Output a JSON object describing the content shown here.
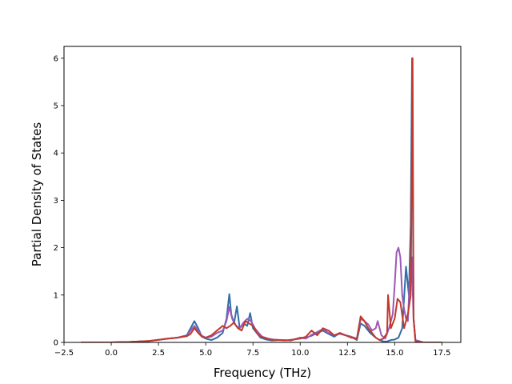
{
  "chart_data": {
    "type": "line",
    "title": "",
    "xlabel": "Frequency (THz)",
    "ylabel": "Partial Density of States",
    "xlim": [
      -2.5,
      18.5
    ],
    "ylim": [
      0,
      6.25
    ],
    "xticks": [
      -2.5,
      0.0,
      2.5,
      5.0,
      7.5,
      10.0,
      12.5,
      15.0,
      17.5
    ],
    "xtick_labels": [
      "−2.5",
      "0.0",
      "2.5",
      "5.0",
      "7.5",
      "10.0",
      "12.5",
      "15.0",
      "17.5"
    ],
    "yticks": [
      0,
      1,
      2,
      3,
      4,
      5,
      6
    ],
    "ytick_labels": [
      "0",
      "1",
      "2",
      "3",
      "4",
      "5",
      "6"
    ],
    "grid": false,
    "legend": "none",
    "series": [
      {
        "color": "#2f6ea8",
        "x": [
          -1.6,
          0,
          1,
          2,
          2.6,
          3,
          3.5,
          4,
          4.2,
          4.4,
          4.6,
          4.8,
          5.0,
          5.3,
          5.6,
          5.9,
          6.1,
          6.25,
          6.35,
          6.5,
          6.65,
          6.8,
          7.0,
          7.2,
          7.35,
          7.5,
          7.7,
          7.9,
          8.2,
          8.5,
          9,
          9.5,
          10,
          10.3,
          10.6,
          10.9,
          11.2,
          11.5,
          11.8,
          12.1,
          12.4,
          12.7,
          13.0,
          13.2,
          13.4,
          13.7,
          14.0,
          14.2,
          14.4,
          14.6,
          14.8,
          15.0,
          15.2,
          15.4,
          15.6,
          15.75,
          15.85,
          15.92,
          16.0,
          16.1,
          16.5,
          17.5
        ],
        "y": [
          0,
          0,
          0.01,
          0.03,
          0.06,
          0.08,
          0.1,
          0.15,
          0.3,
          0.45,
          0.3,
          0.12,
          0.08,
          0.05,
          0.1,
          0.2,
          0.5,
          1.02,
          0.6,
          0.4,
          0.76,
          0.3,
          0.4,
          0.35,
          0.62,
          0.3,
          0.2,
          0.1,
          0.06,
          0.04,
          0.05,
          0.04,
          0.1,
          0.1,
          0.14,
          0.2,
          0.25,
          0.18,
          0.12,
          0.2,
          0.15,
          0.12,
          0.05,
          0.4,
          0.35,
          0.2,
          0.1,
          0.05,
          0.02,
          0.02,
          0.05,
          0.06,
          0.1,
          0.3,
          1.6,
          1.0,
          2.5,
          6.0,
          0.5,
          0.05,
          0,
          0
        ]
      },
      {
        "color": "#9b59b6",
        "x": [
          -1.6,
          0,
          1,
          2,
          2.6,
          3,
          3.5,
          4,
          4.2,
          4.4,
          4.6,
          4.8,
          5.0,
          5.3,
          5.6,
          5.9,
          6.1,
          6.25,
          6.4,
          6.6,
          6.8,
          7.0,
          7.2,
          7.4,
          7.6,
          7.8,
          8.0,
          8.3,
          8.6,
          9,
          9.5,
          10,
          10.3,
          10.6,
          10.9,
          11.2,
          11.5,
          11.8,
          12.1,
          12.4,
          12.7,
          13.0,
          13.2,
          13.4,
          13.6,
          13.8,
          14.0,
          14.1,
          14.3,
          14.5,
          14.7,
          14.9,
          15.0,
          15.1,
          15.2,
          15.3,
          15.4,
          15.5,
          15.6,
          15.7,
          15.8,
          15.9,
          16.0,
          16.1,
          16.5,
          17.5
        ],
        "y": [
          0,
          0,
          0.01,
          0.03,
          0.06,
          0.08,
          0.1,
          0.14,
          0.25,
          0.35,
          0.25,
          0.14,
          0.1,
          0.12,
          0.2,
          0.25,
          0.45,
          0.75,
          0.5,
          0.35,
          0.3,
          0.42,
          0.5,
          0.45,
          0.3,
          0.2,
          0.12,
          0.08,
          0.06,
          0.05,
          0.04,
          0.1,
          0.08,
          0.16,
          0.22,
          0.28,
          0.2,
          0.15,
          0.18,
          0.15,
          0.12,
          0.08,
          0.5,
          0.45,
          0.38,
          0.25,
          0.3,
          0.45,
          0.15,
          0.08,
          0.3,
          0.6,
          1.2,
          1.9,
          2.0,
          1.8,
          1.0,
          0.7,
          0.5,
          0.45,
          1.4,
          1.8,
          0.5,
          0.05,
          0,
          0
        ]
      },
      {
        "color": "#c0392b",
        "x": [
          -1.6,
          0,
          1,
          2,
          2.6,
          3,
          3.5,
          4,
          4.2,
          4.4,
          4.6,
          4.8,
          5.0,
          5.3,
          5.6,
          5.9,
          6.1,
          6.3,
          6.5,
          6.7,
          6.9,
          7.1,
          7.3,
          7.5,
          7.7,
          7.9,
          8.1,
          8.4,
          8.8,
          9.2,
          9.6,
          10,
          10.3,
          10.6,
          10.9,
          11.2,
          11.5,
          11.8,
          12.1,
          12.4,
          12.7,
          13.0,
          13.2,
          13.4,
          13.6,
          13.8,
          14.0,
          14.2,
          14.4,
          14.6,
          14.65,
          14.8,
          15.0,
          15.15,
          15.3,
          15.5,
          15.7,
          15.85,
          15.95,
          16.0,
          16.1,
          16.5,
          17.5
        ],
        "y": [
          0,
          0,
          0.01,
          0.03,
          0.06,
          0.08,
          0.1,
          0.13,
          0.18,
          0.3,
          0.2,
          0.12,
          0.1,
          0.15,
          0.25,
          0.35,
          0.3,
          0.35,
          0.42,
          0.3,
          0.25,
          0.45,
          0.4,
          0.35,
          0.2,
          0.12,
          0.1,
          0.06,
          0.05,
          0.04,
          0.06,
          0.08,
          0.12,
          0.25,
          0.15,
          0.3,
          0.25,
          0.15,
          0.2,
          0.15,
          0.1,
          0.08,
          0.55,
          0.45,
          0.3,
          0.2,
          0.1,
          0.05,
          0.08,
          0.2,
          1.0,
          0.3,
          0.5,
          0.92,
          0.85,
          0.3,
          0.6,
          1.0,
          6.0,
          0.5,
          0.02,
          0,
          0
        ]
      }
    ]
  }
}
